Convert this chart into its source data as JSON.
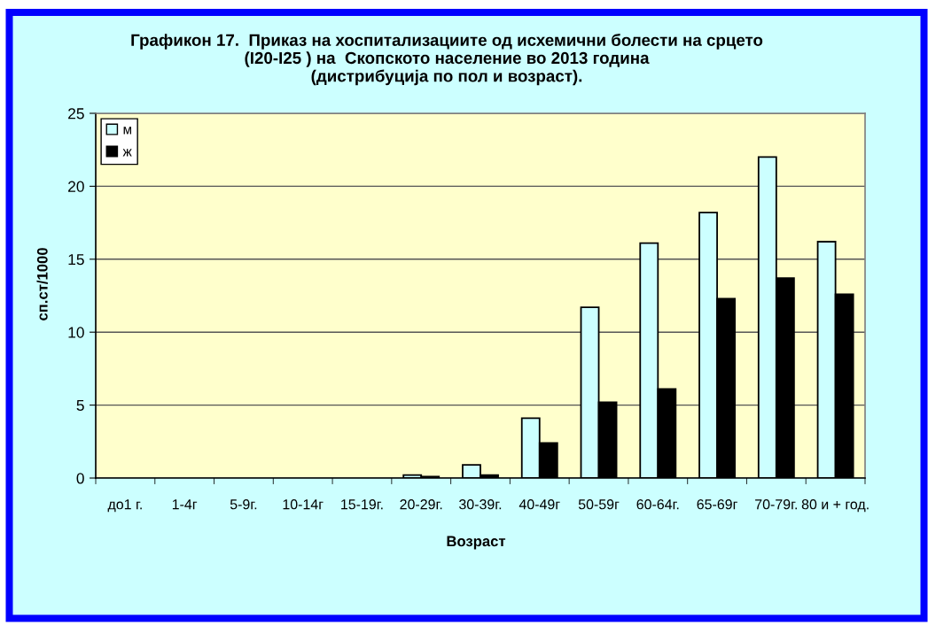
{
  "chart_data": {
    "type": "bar",
    "title": "Графикон 17.  Приказ на хоспитализациите од исхемични болести на срцето\n(I20-I25 ) на  Скопското население во 2013 година\n(дистрибуција по пол и возраст).",
    "xlabel": "Возраст",
    "ylabel": "сп.ст/1000",
    "categories": [
      "до1 г.",
      "1-4г",
      "5-9г.",
      "10-14г",
      "15-19г.",
      "20-29г.",
      "30-39г.",
      "40-49г",
      "50-59г",
      "60-64г.",
      "65-69г",
      "70-79г.",
      "80 и + год."
    ],
    "series": [
      {
        "name": "м",
        "color": "#ccffff",
        "values": [
          null,
          null,
          null,
          null,
          null,
          0.2,
          0.9,
          4.1,
          11.7,
          16.1,
          18.2,
          22.0,
          16.2
        ]
      },
      {
        "name": "ж",
        "color": "#000000",
        "values": [
          null,
          null,
          null,
          null,
          null,
          0.1,
          0.2,
          2.4,
          5.2,
          6.1,
          12.3,
          13.7,
          12.6
        ]
      }
    ],
    "ylim": [
      0,
      25
    ],
    "yticks": [
      0,
      5,
      10,
      15,
      20,
      25
    ],
    "grid": "y",
    "legend": "top left"
  }
}
